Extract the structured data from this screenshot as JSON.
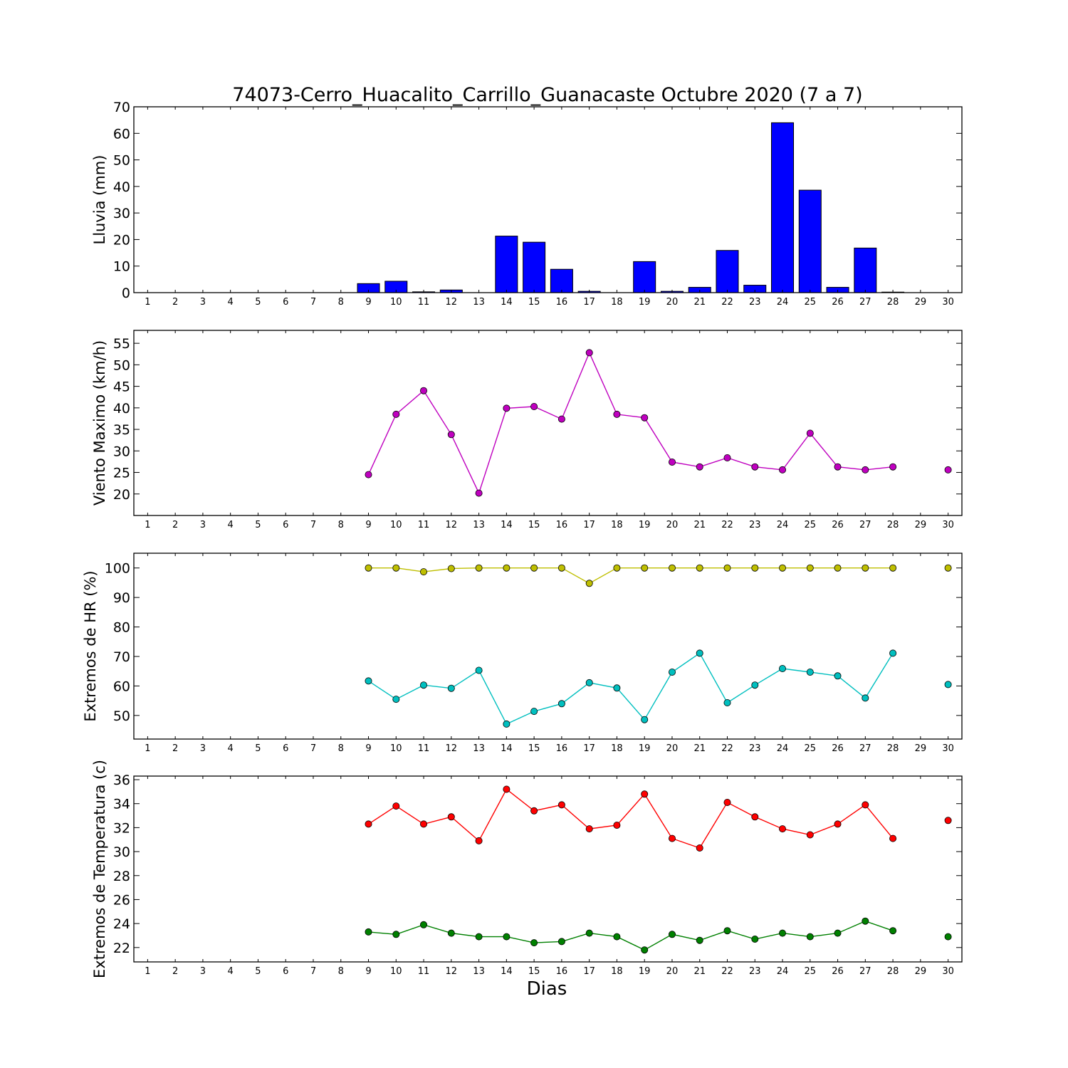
{
  "title": "74073-Cerro_Huacalito_Carrillo_Guanacaste Octubre 2020  (7 a 7)",
  "xlabel": "Dias",
  "chart_data": [
    {
      "type": "bar",
      "ylabel": "Lluvia (mm)",
      "x": [
        1,
        2,
        3,
        4,
        5,
        6,
        7,
        8,
        9,
        10,
        11,
        12,
        13,
        14,
        15,
        16,
        17,
        18,
        19,
        20,
        21,
        22,
        23,
        24,
        25,
        26,
        27,
        28,
        29,
        30
      ],
      "xlim": [
        0.5,
        30.5
      ],
      "ylim": [
        0,
        70
      ],
      "yticks": [
        0,
        10,
        20,
        30,
        40,
        50,
        60,
        70
      ],
      "series": [
        {
          "color": "#0000ff",
          "values": [
            0,
            0,
            0,
            0,
            0,
            0,
            0,
            0,
            3.4,
            4.3,
            0.3,
            1.0,
            0,
            21.3,
            19.0,
            8.8,
            0.5,
            0,
            11.7,
            0.5,
            2.0,
            15.9,
            2.8,
            64.0,
            38.6,
            2.0,
            16.8,
            0.2,
            0,
            0
          ]
        }
      ]
    },
    {
      "type": "line",
      "ylabel": "Viento Maximo (km/h)",
      "x": [
        1,
        2,
        3,
        4,
        5,
        6,
        7,
        8,
        9,
        10,
        11,
        12,
        13,
        14,
        15,
        16,
        17,
        18,
        19,
        20,
        21,
        22,
        23,
        24,
        25,
        26,
        27,
        28,
        29,
        30
      ],
      "xlim": [
        0.5,
        30.5
      ],
      "ylim": [
        15,
        58
      ],
      "yticks": [
        20,
        25,
        30,
        35,
        40,
        45,
        50,
        55
      ],
      "series": [
        {
          "color": "#bf00bf",
          "values": [
            null,
            null,
            null,
            null,
            null,
            null,
            null,
            null,
            24.5,
            38.5,
            44.0,
            33.8,
            20.2,
            39.9,
            40.3,
            37.4,
            52.8,
            38.5,
            37.7,
            27.4,
            26.3,
            28.4,
            26.3,
            25.6,
            34.1,
            26.3,
            25.6,
            26.3,
            null,
            25.6
          ]
        }
      ]
    },
    {
      "type": "line",
      "ylabel": "Extremos de HR (%)",
      "x": [
        1,
        2,
        3,
        4,
        5,
        6,
        7,
        8,
        9,
        10,
        11,
        12,
        13,
        14,
        15,
        16,
        17,
        18,
        19,
        20,
        21,
        22,
        23,
        24,
        25,
        26,
        27,
        28,
        29,
        30
      ],
      "xlim": [
        0.5,
        30.5
      ],
      "ylim": [
        42,
        105
      ],
      "yticks": [
        50,
        60,
        70,
        80,
        90,
        100
      ],
      "series": [
        {
          "color": "#bfbf00",
          "values": [
            null,
            null,
            null,
            null,
            null,
            null,
            null,
            null,
            100,
            100,
            98.7,
            99.8,
            100,
            100,
            100,
            100,
            94.8,
            100,
            100,
            100,
            100,
            100,
            100,
            100,
            100,
            100,
            100,
            100,
            null,
            100
          ]
        },
        {
          "color": "#00bfbf",
          "values": [
            null,
            null,
            null,
            null,
            null,
            null,
            null,
            null,
            61.7,
            55.5,
            60.3,
            59.2,
            65.3,
            47.1,
            51.4,
            54.0,
            61.1,
            59.3,
            48.6,
            64.7,
            71.1,
            54.3,
            60.3,
            65.9,
            64.7,
            63.4,
            55.9,
            71.1,
            null,
            60.5
          ]
        }
      ]
    },
    {
      "type": "line",
      "ylabel": "Extremos de Temperatura (c)",
      "x": [
        1,
        2,
        3,
        4,
        5,
        6,
        7,
        8,
        9,
        10,
        11,
        12,
        13,
        14,
        15,
        16,
        17,
        18,
        19,
        20,
        21,
        22,
        23,
        24,
        25,
        26,
        27,
        28,
        29,
        30
      ],
      "xlim": [
        0.5,
        30.5
      ],
      "ylim": [
        20.8,
        36.3
      ],
      "yticks": [
        22,
        24,
        26,
        28,
        30,
        32,
        34,
        36
      ],
      "series": [
        {
          "color": "#ff0000",
          "values": [
            null,
            null,
            null,
            null,
            null,
            null,
            null,
            null,
            32.3,
            33.8,
            32.3,
            32.9,
            30.9,
            35.2,
            33.4,
            33.9,
            31.9,
            32.2,
            34.8,
            31.1,
            30.3,
            34.1,
            32.9,
            31.9,
            31.4,
            32.3,
            33.9,
            31.1,
            null,
            32.6
          ]
        },
        {
          "color": "#008000",
          "values": [
            null,
            null,
            null,
            null,
            null,
            null,
            null,
            null,
            23.3,
            23.1,
            23.9,
            23.2,
            22.9,
            22.9,
            22.4,
            22.5,
            23.2,
            22.9,
            21.8,
            23.1,
            22.6,
            23.4,
            22.7,
            23.2,
            22.9,
            23.2,
            24.2,
            23.4,
            null,
            22.9
          ]
        }
      ]
    }
  ]
}
